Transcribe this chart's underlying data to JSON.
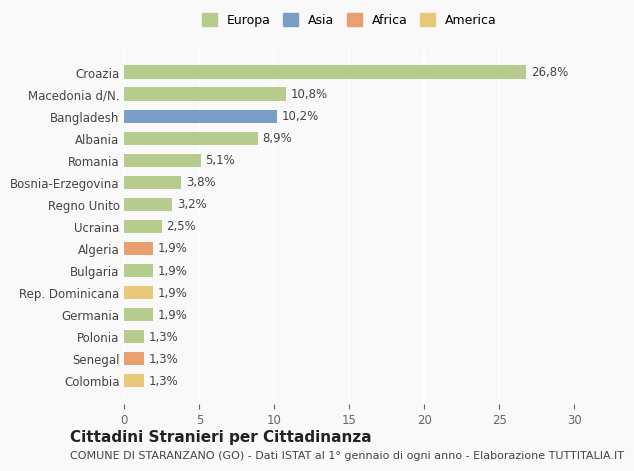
{
  "categories": [
    "Colombia",
    "Senegal",
    "Polonia",
    "Germania",
    "Rep. Dominicana",
    "Bulgaria",
    "Algeria",
    "Ucraina",
    "Regno Unito",
    "Bosnia-Erzegovina",
    "Romania",
    "Albania",
    "Bangladesh",
    "Macedonia d/N.",
    "Croazia"
  ],
  "values": [
    1.3,
    1.3,
    1.3,
    1.9,
    1.9,
    1.9,
    1.9,
    2.5,
    3.2,
    3.8,
    5.1,
    8.9,
    10.2,
    10.8,
    26.8
  ],
  "labels": [
    "1,3%",
    "1,3%",
    "1,3%",
    "1,9%",
    "1,9%",
    "1,9%",
    "1,9%",
    "2,5%",
    "3,2%",
    "3,8%",
    "5,1%",
    "8,9%",
    "10,2%",
    "10,8%",
    "26,8%"
  ],
  "colors": [
    "#e8c97a",
    "#e8a070",
    "#b5cc8e",
    "#b5cc8e",
    "#e8c97a",
    "#b5cc8e",
    "#e8a070",
    "#b5cc8e",
    "#b5cc8e",
    "#b5cc8e",
    "#b5cc8e",
    "#b5cc8e",
    "#7b9ec7",
    "#b5cc8e",
    "#b5cc8e"
  ],
  "legend_labels": [
    "Europa",
    "Asia",
    "Africa",
    "America"
  ],
  "legend_colors": [
    "#b5cc8e",
    "#7b9ec7",
    "#e8a070",
    "#e8c97a"
  ],
  "xlim": [
    0,
    30
  ],
  "xticks": [
    0,
    5,
    10,
    15,
    20,
    25,
    30
  ],
  "title": "Cittadini Stranieri per Cittadinanza",
  "subtitle": "COMUNE DI STARANZANO (GO) - Dati ISTAT al 1° gennaio di ogni anno - Elaborazione TUTTITALIA.IT",
  "bg_color": "#f9f9f9",
  "grid_color": "#ffffff",
  "bar_height": 0.6,
  "label_fontsize": 8.5,
  "tick_fontsize": 8.5,
  "title_fontsize": 11,
  "subtitle_fontsize": 8
}
